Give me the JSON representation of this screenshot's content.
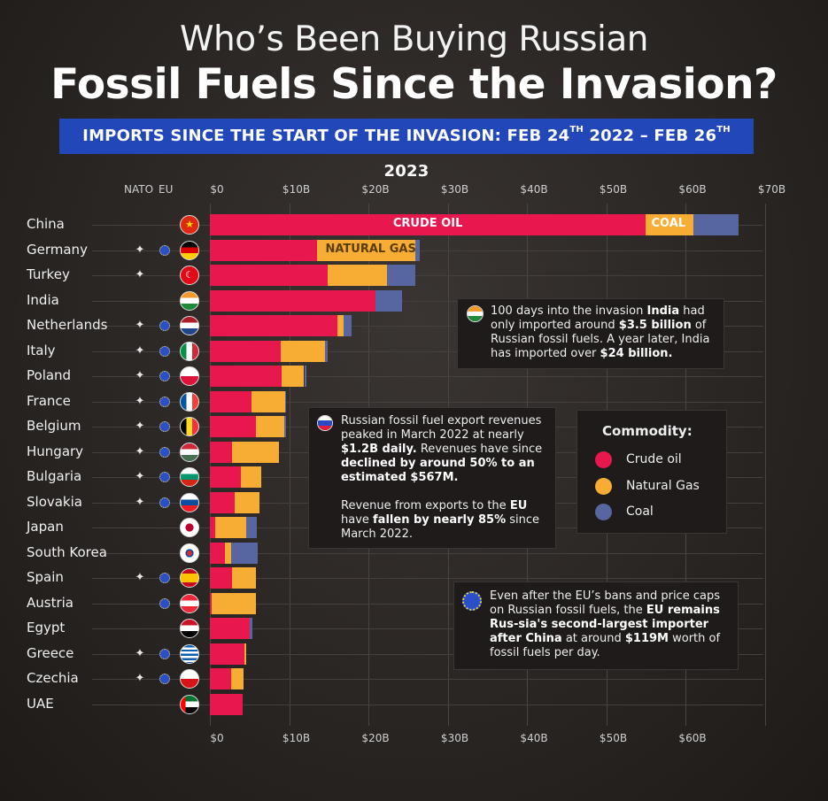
{
  "title_line1": "Who’s Been Buying Russian",
  "title_line2": "Fossil Fuels Since the Invasion?",
  "banner": {
    "text_a": "IMPORTS SINCE THE START OF THE INVASION:  FEB 24",
    "sup_a": "TH",
    "text_b": " 2022 – FEB 26",
    "sup_b": "TH",
    "text_c": " 2023"
  },
  "headers": {
    "nato": "NATO",
    "eu": "EU"
  },
  "colors": {
    "crude": "#e8174d",
    "gas": "#f7ad33",
    "coal": "#5765a0"
  },
  "chart_data": {
    "type": "bar",
    "orientation": "horizontal",
    "stacked": true,
    "x_ticks_top": [
      "$0",
      "$10B",
      "$20B",
      "$30B",
      "$40B",
      "$50B",
      "$60B",
      "$70B"
    ],
    "x_ticks_bottom": [
      "$0",
      "$10B",
      "$20B",
      "$30B",
      "$40B",
      "$50B",
      "$60B"
    ],
    "xlim": [
      0,
      70
    ],
    "categories": [
      "China",
      "Germany",
      "Turkey",
      "India",
      "Netherlands",
      "Italy",
      "Poland",
      "France",
      "Belgium",
      "Hungary",
      "Bulgaria",
      "Slovakia",
      "Japan",
      "South Korea",
      "Spain",
      "Austria",
      "Egypt",
      "Greece",
      "Czechia",
      "UAE"
    ],
    "series": [
      {
        "name": "Crude oil",
        "values": [
          55.0,
          13.5,
          14.9,
          20.9,
          16.1,
          8.9,
          9.1,
          5.3,
          5.8,
          2.8,
          3.9,
          3.1,
          0.7,
          1.9,
          2.8,
          0.2,
          5.0,
          4.4,
          2.7,
          4.1
        ]
      },
      {
        "name": "Natural Gas",
        "values": [
          6.0,
          12.4,
          7.5,
          0.0,
          0.8,
          5.6,
          2.8,
          4.2,
          3.6,
          5.9,
          2.6,
          3.2,
          3.9,
          0.8,
          3.0,
          5.6,
          0.0,
          0.2,
          1.5,
          0.0
        ]
      },
      {
        "name": "Coal",
        "values": [
          5.7,
          0.6,
          3.5,
          3.4,
          1.0,
          0.4,
          0.3,
          0.1,
          0.2,
          0.0,
          0.0,
          0.0,
          1.3,
          3.3,
          0.0,
          0.0,
          0.4,
          0.0,
          0.0,
          0.0
        ]
      }
    ],
    "nato": [
      false,
      true,
      true,
      false,
      true,
      true,
      true,
      true,
      true,
      true,
      true,
      true,
      false,
      false,
      true,
      false,
      false,
      true,
      true,
      false
    ],
    "eu": [
      false,
      true,
      false,
      false,
      true,
      true,
      true,
      true,
      true,
      true,
      true,
      true,
      false,
      false,
      true,
      true,
      false,
      true,
      true,
      false
    ],
    "flags": [
      "china",
      "germany",
      "turkey",
      "india",
      "netherlands",
      "italy",
      "poland",
      "france",
      "belgium",
      "hungary",
      "bulgaria",
      "slovakia",
      "japan",
      "south-korea",
      "spain",
      "austria",
      "egypt",
      "greece",
      "czechia",
      "uae"
    ],
    "bar_labels": {
      "crude": "CRUDE OIL",
      "coal": "COAL",
      "gas": "NATURAL GAS"
    },
    "legend": {
      "title": "Commodity:",
      "items": [
        "Crude oil",
        "Natural Gas",
        "Coal"
      ]
    }
  },
  "annotations": {
    "india": {
      "t1": "100 days into the invasion ",
      "b1": "India",
      "t2": " had only imported around ",
      "b2": "$3.5 billion",
      "t3": " of Russian fossil fuels. A year later, India has imported over ",
      "b3": "$24 billion."
    },
    "russia": {
      "t1": "Russian fossil fuel export revenues peaked in March 2022 at nearly ",
      "b1": "$1.2B daily.",
      "t2": " Revenues have since ",
      "b2": "declined by around 50% to an estimated $567M.",
      "t3": "Revenue from exports to the ",
      "b3": "EU",
      "t4": " have ",
      "b4": "fallen by nearly 85%",
      "t5": " since March 2022."
    },
    "eu": {
      "t1": "Even after the EU’s bans and price caps on Russian fossil fuels, the ",
      "b1": "EU remains Rus-sia's second-largest importer after China",
      "t2": " at around ",
      "b2": "$119M",
      "t3": " worth of fossil fuels per day."
    }
  }
}
